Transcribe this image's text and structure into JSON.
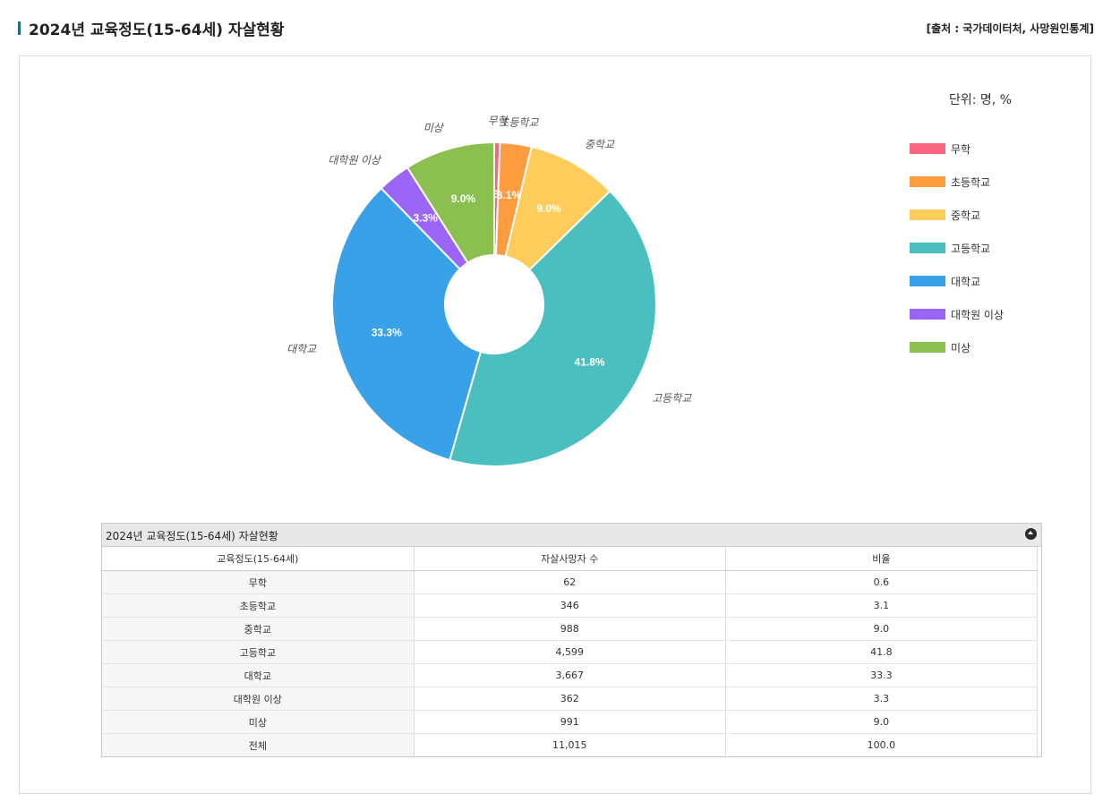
{
  "header": {
    "title": "2024년 교육정도(15-64세) 자살현황",
    "source": "[출처 : 국가데이터처, 사망원인통계]"
  },
  "chart": {
    "unit_label": "단위: 명, %"
  },
  "chart_data": {
    "type": "pie",
    "donut": true,
    "categories": [
      "무학",
      "초등학교",
      "중학교",
      "고등학교",
      "대학교",
      "대학원 이상",
      "미상"
    ],
    "values": [
      62,
      346,
      988,
      4599,
      3667,
      362,
      991
    ],
    "percent_labels": [
      "0.6%",
      "3.1%",
      "9.0%",
      "41.8%",
      "33.3%",
      "3.3%",
      "9.0%"
    ],
    "colors": [
      "#f7657f",
      "#fd9d40",
      "#fecc5b",
      "#4bbfc0",
      "#38a1e8",
      "#9b66f8",
      "#8bc050"
    ],
    "legend_position": "right"
  },
  "table": {
    "caption": "2024년 교육정도(15-64세) 자살현황",
    "headers": [
      "교육정도(15-64세)",
      "자살사망자 수",
      "비율"
    ],
    "rows": [
      [
        "무학",
        "62",
        "0.6"
      ],
      [
        "초등학교",
        "346",
        "3.1"
      ],
      [
        "중학교",
        "988",
        "9.0"
      ],
      [
        "고등학교",
        "4,599",
        "41.8"
      ],
      [
        "대학교",
        "3,667",
        "33.3"
      ],
      [
        "대학원 이상",
        "362",
        "3.3"
      ],
      [
        "미상",
        "991",
        "9.0"
      ],
      [
        "전체",
        "11,015",
        "100.0"
      ]
    ]
  }
}
